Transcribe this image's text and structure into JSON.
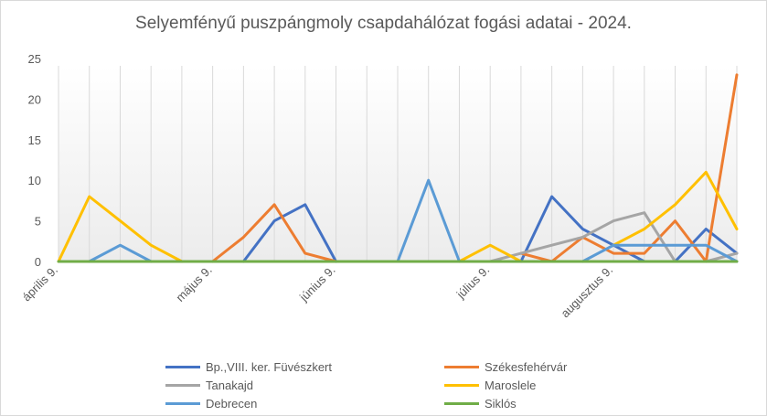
{
  "chart_data": {
    "type": "line",
    "title": "Selyemfényű puszpángmoly csapdahálózat fogási adatai - 2024.",
    "ylim": [
      0,
      25
    ],
    "yticks": [
      0,
      5,
      10,
      15,
      20,
      25
    ],
    "x_tick_labels": [
      "április 9.",
      "május 9.",
      "június 9.",
      "július 9.",
      "augusztus 9."
    ],
    "x_tick_index": [
      0,
      5,
      9,
      14,
      18
    ],
    "x_count": 23,
    "grid": "vertical",
    "legend_position": "bottom",
    "series": [
      {
        "name": "Bp.,VIII. ker. Füvészkert",
        "color": "#4472C4",
        "values": [
          null,
          null,
          null,
          null,
          null,
          null,
          0,
          5,
          7,
          0,
          null,
          null,
          null,
          null,
          null,
          0,
          8,
          4,
          2,
          0,
          0,
          4,
          1
        ]
      },
      {
        "name": "Székesfehérvár",
        "color": "#ED7D31",
        "values": [
          null,
          null,
          null,
          null,
          null,
          0,
          3,
          7,
          1,
          0,
          null,
          null,
          null,
          null,
          null,
          1,
          0,
          3,
          1,
          1,
          5,
          0,
          23
        ]
      },
      {
        "name": "Tanakajd",
        "color": "#A5A5A5",
        "values": [
          null,
          null,
          null,
          null,
          null,
          null,
          null,
          null,
          null,
          null,
          null,
          null,
          null,
          null,
          0,
          1,
          2,
          3,
          5,
          6,
          0,
          0,
          1
        ]
      },
      {
        "name": "Maroslele",
        "color": "#FFC000",
        "values": [
          0,
          8,
          5,
          2,
          0,
          null,
          null,
          null,
          null,
          null,
          null,
          null,
          null,
          0,
          2,
          0,
          null,
          null,
          2,
          4,
          7,
          11,
          4
        ]
      },
      {
        "name": "Debrecen",
        "color": "#5B9BD5",
        "values": [
          null,
          0,
          2,
          0,
          null,
          null,
          null,
          null,
          null,
          null,
          null,
          0,
          10,
          0,
          null,
          null,
          null,
          0,
          2,
          2,
          2,
          2,
          0
        ]
      },
      {
        "name": "Siklós",
        "color": "#70AD47",
        "values": [
          0,
          0,
          0,
          0,
          0,
          0,
          0,
          0,
          0,
          0,
          0,
          0,
          0,
          0,
          0,
          0,
          0,
          0,
          0,
          0,
          0,
          0,
          0
        ]
      }
    ]
  }
}
